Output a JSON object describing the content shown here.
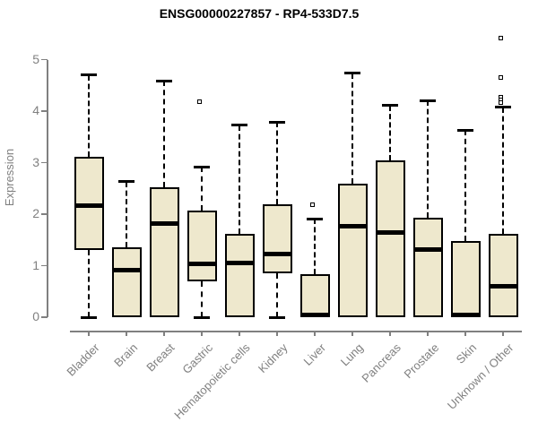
{
  "title": "ENSG00000227857 - RP4-533D7.5",
  "chart_data": {
    "type": "boxplot",
    "title": "ENSG00000227857 - RP4-533D7.5",
    "xlabel": "",
    "ylabel": "Expression",
    "ylim": [
      0,
      5
    ],
    "yticks": [
      0,
      1,
      2,
      3,
      4,
      5
    ],
    "grid": false,
    "legend": "none",
    "categories": [
      "Bladder",
      "Brain",
      "Breast",
      "Gastric",
      "Hematopoietic cells",
      "Kidney",
      "Liver",
      "Lung",
      "Pancreas",
      "Prostate",
      "Skin",
      "Unknown / Other"
    ],
    "series": [
      {
        "name": "Bladder",
        "whisker_low": 0,
        "q1": 1.3,
        "median": 2.16,
        "q3": 3.11,
        "whisker_high": 4.7,
        "outliers": []
      },
      {
        "name": "Brain",
        "whisker_low": 0,
        "q1": 0,
        "median": 0.91,
        "q3": 1.36,
        "whisker_high": 2.63,
        "outliers": []
      },
      {
        "name": "Breast",
        "whisker_low": 0,
        "q1": 0,
        "median": 1.81,
        "q3": 2.52,
        "whisker_high": 4.59,
        "outliers": []
      },
      {
        "name": "Gastric",
        "whisker_low": 0,
        "q1": 0.7,
        "median": 1.04,
        "q3": 2.07,
        "whisker_high": 2.92,
        "outliers": [
          4.18
        ]
      },
      {
        "name": "Hematopoietic cells",
        "whisker_low": 0,
        "q1": 0,
        "median": 1.06,
        "q3": 1.62,
        "whisker_high": 3.73,
        "outliers": []
      },
      {
        "name": "Kidney",
        "whisker_low": 0,
        "q1": 0.85,
        "median": 1.22,
        "q3": 2.19,
        "whisker_high": 3.79,
        "outliers": []
      },
      {
        "name": "Liver",
        "whisker_low": 0,
        "q1": 0,
        "median": 0.04,
        "q3": 0.84,
        "whisker_high": 1.91,
        "outliers": [
          2.19
        ]
      },
      {
        "name": "Lung",
        "whisker_low": 0,
        "q1": 0,
        "median": 1.77,
        "q3": 2.59,
        "whisker_high": 4.74,
        "outliers": []
      },
      {
        "name": "Pancreas",
        "whisker_low": 0,
        "q1": 0,
        "median": 1.65,
        "q3": 3.05,
        "whisker_high": 4.11,
        "outliers": []
      },
      {
        "name": "Prostate",
        "whisker_low": 0,
        "q1": 0,
        "median": 1.32,
        "q3": 1.93,
        "whisker_high": 4.21,
        "outliers": []
      },
      {
        "name": "Skin",
        "whisker_low": 0,
        "q1": 0,
        "median": 0.04,
        "q3": 1.48,
        "whisker_high": 3.63,
        "outliers": []
      },
      {
        "name": "Unknown / Other",
        "whisker_low": 0,
        "q1": 0,
        "median": 0.6,
        "q3": 1.61,
        "whisker_high": 4.08,
        "outliers": [
          5.42,
          4.66,
          4.28,
          4.22,
          4.16
        ]
      }
    ],
    "colors": {
      "box_fill": "#EEE8CD",
      "box_border": "#000000",
      "median": "#000000",
      "whisker": "#000000",
      "axis": "#808080",
      "tick_label": "#808080",
      "title": "#000000",
      "background": "#FFFFFF"
    }
  }
}
